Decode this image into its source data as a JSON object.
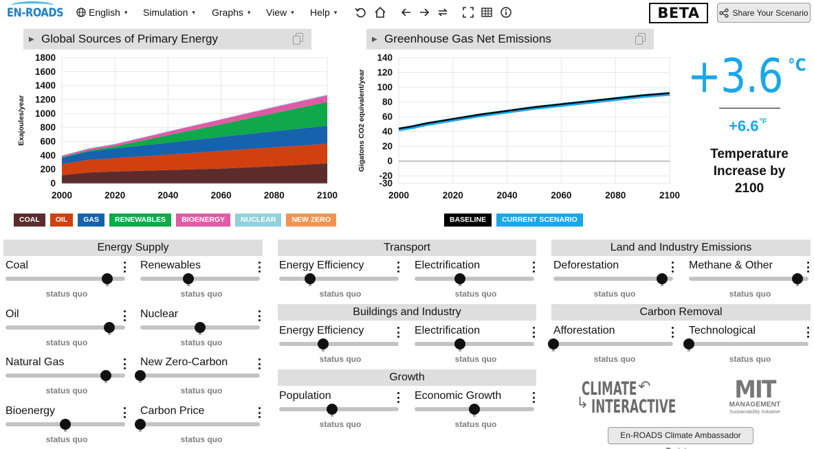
{
  "logo": {
    "text": "EN-ROADS"
  },
  "menu": {
    "language": "English",
    "simulation": "Simulation",
    "graphs": "Graphs",
    "view": "View",
    "help": "Help"
  },
  "toolbar": {
    "icons": [
      "undo-icon",
      "home-icon",
      "back-icon",
      "forward-icon",
      "swap-icon",
      "fullscreen-icon",
      "grid-icon",
      "info-icon"
    ],
    "beta": "BETA",
    "share_label": "Share Your Scenario"
  },
  "graph_left": {
    "title": "Global Sources of Primary Energy",
    "legend": [
      {
        "label": "COAL",
        "color": "#5c2c2c"
      },
      {
        "label": "OIL",
        "color": "#d2400f"
      },
      {
        "label": "GAS",
        "color": "#1662ad"
      },
      {
        "label": "RENEWABLES",
        "color": "#0fa84b"
      },
      {
        "label": "BIOENERGY",
        "color": "#e05aa5"
      },
      {
        "label": "NUCLEAR",
        "color": "#8fd1dd"
      },
      {
        "label": "NEW ZERO",
        "color": "#f19451"
      }
    ]
  },
  "graph_right": {
    "title": "Greenhouse Gas Net Emissions",
    "legend": [
      {
        "label": "BASELINE",
        "color": "#000000"
      },
      {
        "label": "CURRENT SCENARIO",
        "color": "#1aa7e8"
      }
    ]
  },
  "chart_data": [
    {
      "type": "area",
      "title": "Global Sources of Primary Energy",
      "xlabel": "",
      "ylabel": "Exajoules/year",
      "x": [
        2000,
        2010,
        2020,
        2040,
        2060,
        2080,
        2100
      ],
      "xticks": [
        2000,
        2020,
        2040,
        2060,
        2080,
        2100
      ],
      "yticks": [
        0,
        200,
        400,
        600,
        800,
        1000,
        1200,
        1400,
        1600,
        1800
      ],
      "xlim": [
        2000,
        2100
      ],
      "ylim": [
        0,
        1800
      ],
      "stacked": true,
      "series": [
        {
          "name": "COAL",
          "color": "#5c2c2c",
          "values": [
            115,
            155,
            170,
            190,
            210,
            245,
            285
          ]
        },
        {
          "name": "OIL",
          "color": "#d2400f",
          "values": [
            160,
            180,
            190,
            220,
            255,
            270,
            280
          ]
        },
        {
          "name": "GAS",
          "color": "#1662ad",
          "values": [
            90,
            120,
            140,
            170,
            200,
            230,
            260
          ]
        },
        {
          "name": "RENEWABLES",
          "color": "#0fa84b",
          "values": [
            10,
            15,
            30,
            110,
            180,
            260,
            340
          ]
        },
        {
          "name": "BIOENERGY",
          "color": "#e05aa5",
          "values": [
            20,
            25,
            30,
            50,
            70,
            85,
            95
          ]
        },
        {
          "name": "NUCLEAR",
          "color": "#8fd1dd",
          "values": [
            5,
            5,
            5,
            5,
            5,
            8,
            10
          ]
        },
        {
          "name": "NEW ZERO",
          "color": "#f19451",
          "values": [
            0,
            0,
            0,
            0,
            0,
            0,
            0
          ]
        }
      ],
      "grid": true
    },
    {
      "type": "line",
      "title": "Greenhouse Gas Net Emissions",
      "xlabel": "",
      "ylabel": "Gigatons CO2 equivalent/year",
      "x": [
        2000,
        2005,
        2010,
        2015,
        2020,
        2030,
        2040,
        2050,
        2060,
        2070,
        2080,
        2090,
        2100
      ],
      "xticks": [
        2000,
        2020,
        2040,
        2060,
        2080,
        2100
      ],
      "yticks": [
        -30,
        -20,
        0,
        20,
        40,
        60,
        80,
        100,
        120,
        140
      ],
      "xlim": [
        2000,
        2100
      ],
      "ylim": [
        -30,
        140
      ],
      "series": [
        {
          "name": "BASELINE",
          "color": "#000000",
          "values": [
            44,
            47,
            51,
            54,
            57,
            63,
            68,
            73,
            77,
            81,
            85,
            89,
            92
          ]
        },
        {
          "name": "CURRENT SCENARIO",
          "color": "#1aa7e8",
          "values": [
            43,
            46,
            50,
            53,
            56,
            62,
            67,
            72,
            76,
            80,
            84,
            88,
            91
          ]
        }
      ],
      "grid": true
    }
  ],
  "temperature": {
    "celsius": "+3.6",
    "celsius_unit": "°C",
    "fahrenheit": "+6.6",
    "fahrenheit_unit": "°F",
    "label_line1": "Temperature",
    "label_line2": "Increase by",
    "label_line3": "2100"
  },
  "sections": {
    "energy_supply": "Energy Supply",
    "transport": "Transport",
    "buildings": "Buildings and Industry",
    "growth": "Growth",
    "land": "Land and Industry Emissions",
    "carbon_removal": "Carbon Removal"
  },
  "controls": [
    {
      "id": "coal",
      "label": "Coal",
      "status": "status quo",
      "value": 0.85
    },
    {
      "id": "renewables",
      "label": "Renewables",
      "status": "status quo",
      "value": 0.4
    },
    {
      "id": "oil",
      "label": "Oil",
      "status": "status quo",
      "value": 0.87
    },
    {
      "id": "nuclear",
      "label": "Nuclear",
      "status": "status quo",
      "value": 0.5
    },
    {
      "id": "natural-gas",
      "label": "Natural Gas",
      "status": "status quo",
      "value": 0.84
    },
    {
      "id": "new-zero-carbon",
      "label": "New Zero-Carbon",
      "status": "status quo",
      "value": 0.0
    },
    {
      "id": "bioenergy",
      "label": "Bioenergy",
      "status": "status quo",
      "value": 0.5
    },
    {
      "id": "carbon-price",
      "label": "Carbon Price",
      "status": "status quo",
      "value": 0.0
    },
    {
      "id": "transport-efficiency",
      "label": "Energy Efficiency",
      "status": "status quo",
      "value": 0.26
    },
    {
      "id": "transport-electrification",
      "label": "Electrification",
      "status": "status quo",
      "value": 0.38
    },
    {
      "id": "buildings-efficiency",
      "label": "Energy Efficiency",
      "status": "status quo",
      "value": 0.37
    },
    {
      "id": "buildings-electrification",
      "label": "Electrification",
      "status": "status quo",
      "value": 0.38
    },
    {
      "id": "population",
      "label": "Population",
      "status": "status quo",
      "value": 0.44
    },
    {
      "id": "economic-growth",
      "label": "Economic Growth",
      "status": "status quo",
      "value": 0.5
    },
    {
      "id": "deforestation",
      "label": "Deforestation",
      "status": "status quo",
      "value": 0.91
    },
    {
      "id": "methane-other",
      "label": "Methane & Other",
      "status": "status quo",
      "value": 0.91
    },
    {
      "id": "afforestation",
      "label": "Afforestation",
      "status": "status quo",
      "value": 0.0
    },
    {
      "id": "technological",
      "label": "Technological",
      "status": "status quo",
      "value": 0.0
    }
  ],
  "partners": {
    "ci_line1": "CLIMATE",
    "ci_line2": "INTERACTIVE",
    "mit_line1": "MIT",
    "mit_line2": "MANAGEMENT",
    "mit_line3": "Sustainability Initiative"
  },
  "training_label": "En-ROADS Climate Ambassador Training"
}
